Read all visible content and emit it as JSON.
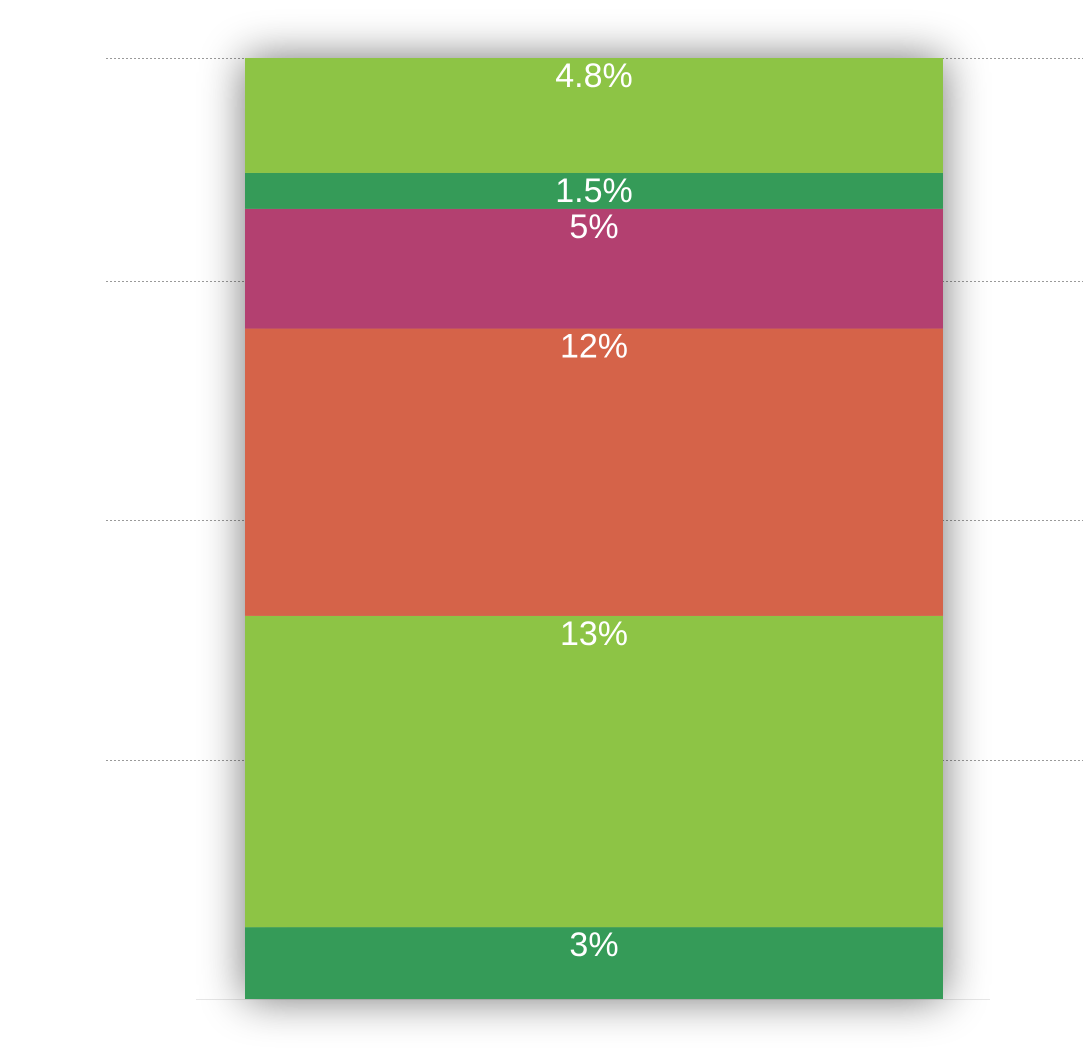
{
  "chart_data": {
    "type": "bar",
    "stacked": true,
    "categories": [
      ""
    ],
    "series": [
      {
        "value": 3,
        "label": "3%",
        "color": "#359b59"
      },
      {
        "value": 13,
        "label": "13%",
        "color": "#8dc445"
      },
      {
        "value": 12,
        "label": "12%",
        "color": "#d5644a"
      },
      {
        "value": 5,
        "label": "5%",
        "color": "#b33f70"
      },
      {
        "value": 1.5,
        "label": "1.5%",
        "color": "#359b59"
      },
      {
        "value": 4.8,
        "label": "4.8%",
        "color": "#8dc445"
      }
    ],
    "ylim": [
      0,
      39.3
    ],
    "grid": true,
    "gridlines": [
      10,
      20,
      30,
      39.3
    ]
  }
}
